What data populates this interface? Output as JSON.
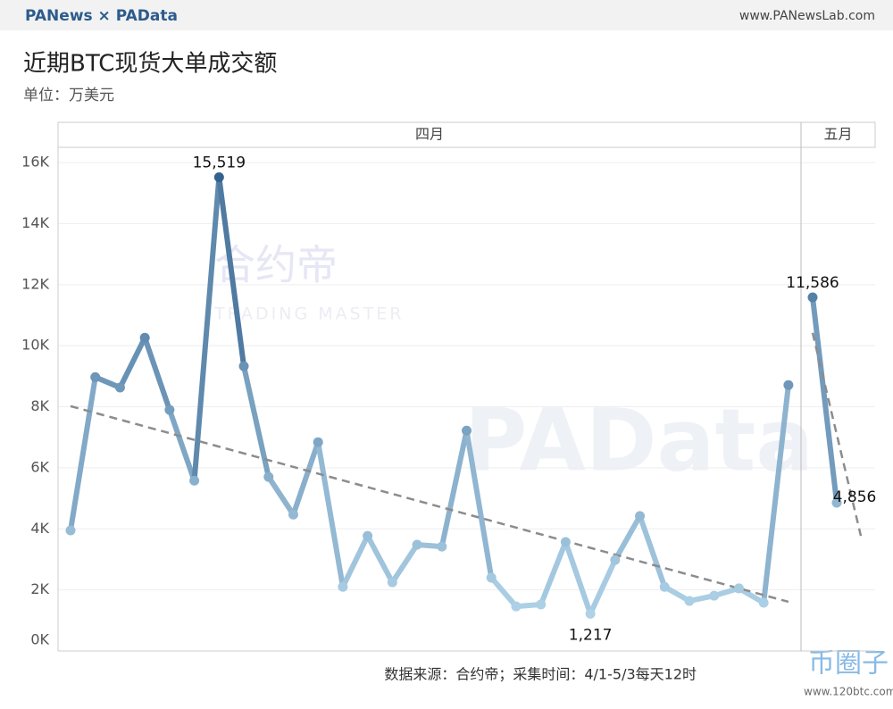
{
  "header": {
    "brand": "PANews × PAData",
    "url": "www.PANewsLab.com"
  },
  "chart_data": {
    "type": "line",
    "title": "近期BTC现货大单成交额",
    "subtitle": "单位：万美元",
    "source": "数据来源：合约帝；采集时间：4/1-5/3每天12时",
    "color_scale": [
      "#b9dcef",
      "#2c5a88"
    ],
    "trend_color": "#8c8c8c",
    "ylim": [
      0,
      16500
    ],
    "yticks": [
      {
        "value": 0,
        "label": "0K"
      },
      {
        "value": 2000,
        "label": "2K"
      },
      {
        "value": 4000,
        "label": "4K"
      },
      {
        "value": 6000,
        "label": "6K"
      },
      {
        "value": 8000,
        "label": "8K"
      },
      {
        "value": 10000,
        "label": "10K"
      },
      {
        "value": 12000,
        "label": "12K"
      },
      {
        "value": 14000,
        "label": "14K"
      },
      {
        "value": 16000,
        "label": "16K"
      }
    ],
    "grid": true,
    "panels": [
      {
        "label": "四月",
        "values": [
          3950,
          8970,
          8630,
          10260,
          7900,
          5580,
          15519,
          9330,
          5700,
          4470,
          6840,
          2100,
          3770,
          2250,
          3480,
          3420,
          7220,
          2400,
          1460,
          1520,
          3570,
          1217,
          2980,
          4420,
          2100,
          1640,
          1810,
          2050,
          1580,
          8710
        ],
        "value_labels": [
          null,
          null,
          null,
          null,
          null,
          null,
          "15,519",
          null,
          null,
          null,
          null,
          null,
          null,
          null,
          null,
          null,
          null,
          null,
          null,
          null,
          null,
          "1,217",
          null,
          null,
          null,
          null,
          null,
          null,
          null,
          null
        ],
        "trend": [
          8020,
          1610
        ]
      },
      {
        "label": "五月",
        "values": [
          11586,
          4856,
          null
        ],
        "value_labels": [
          "11,586",
          "4,856",
          null
        ],
        "trend": [
          10420,
          3770
        ]
      }
    ]
  },
  "watermarks": [
    "合约帝",
    "TRADING MASTER",
    "PAData",
    "币圈子",
    "www.120btc.com"
  ]
}
